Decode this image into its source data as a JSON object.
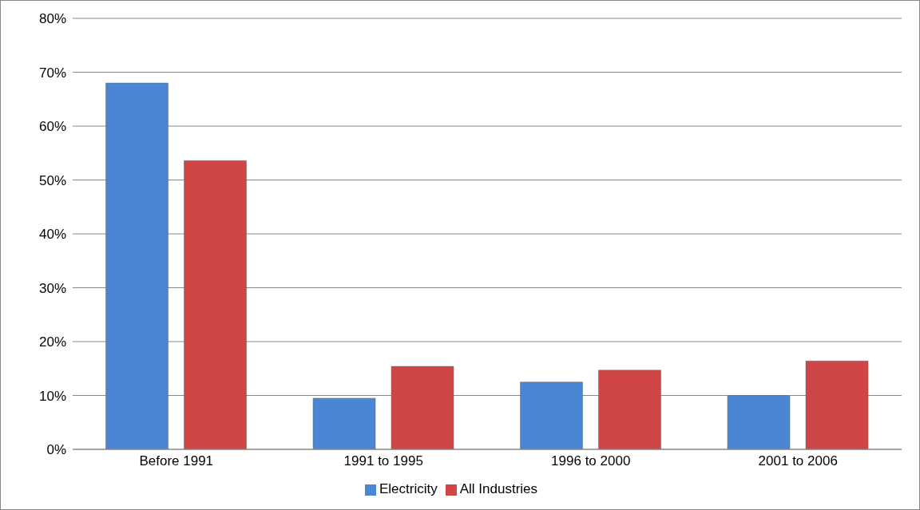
{
  "chart_data": {
    "type": "bar",
    "categories": [
      "Before 1991",
      "1991 to 1995",
      "1996 to 2000",
      "2001 to 2006"
    ],
    "series": [
      {
        "name": "Electricity",
        "color": "#4a86d4",
        "values": [
          68,
          9.5,
          12.5,
          10
        ]
      },
      {
        "name": "All Industries",
        "color": "#d04545",
        "values": [
          53.6,
          15.4,
          14.7,
          16.4
        ]
      }
    ],
    "ylim": [
      0,
      80
    ],
    "yticks": [
      {
        "value": 0,
        "label": "0%"
      },
      {
        "value": 10,
        "label": "10%"
      },
      {
        "value": 20,
        "label": "20%"
      },
      {
        "value": 30,
        "label": "30%"
      },
      {
        "value": 40,
        "label": "40%"
      },
      {
        "value": 50,
        "label": "50%"
      },
      {
        "value": 60,
        "label": "60%"
      },
      {
        "value": 70,
        "label": "70%"
      },
      {
        "value": 80,
        "label": "80%"
      }
    ],
    "grid": "y",
    "legend": "bottom"
  }
}
